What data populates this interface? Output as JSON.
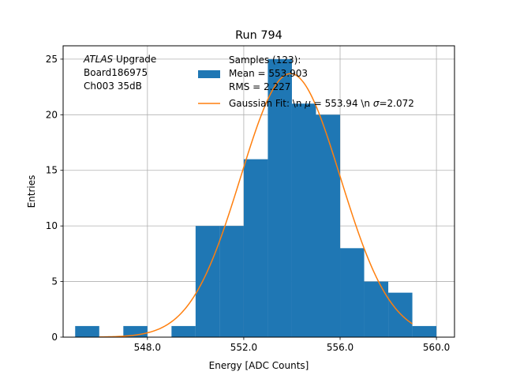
{
  "chart_data": {
    "type": "bar",
    "title": "Run 794",
    "xlabel": "Energy [ADC Counts]",
    "ylabel": "Entries",
    "xlim": [
      544.5,
      560.75
    ],
    "ylim": [
      0,
      26.2
    ],
    "xticks": [
      {
        "value": 548,
        "label": "548.0"
      },
      {
        "value": 552,
        "label": "552.0"
      },
      {
        "value": 556,
        "label": "556.0"
      },
      {
        "value": 560,
        "label": "560.0"
      }
    ],
    "yticks": [
      {
        "value": 0,
        "label": "0"
      },
      {
        "value": 5,
        "label": "5"
      },
      {
        "value": 10,
        "label": "10"
      },
      {
        "value": 15,
        "label": "15"
      },
      {
        "value": 20,
        "label": "20"
      },
      {
        "value": 25,
        "label": "25"
      }
    ],
    "grid": true,
    "legend_position": "top-right",
    "histogram": {
      "name": "Samples (123):\n Mean = 553.903\n RMS = 2.227",
      "color": "#1f77b4",
      "bin_edges": [
        545,
        546,
        547,
        548,
        549,
        550,
        551,
        552,
        553,
        554,
        555,
        556,
        557,
        558,
        559,
        560
      ],
      "counts": [
        1,
        0,
        1,
        0,
        1,
        10,
        10,
        16,
        25,
        21,
        20,
        8,
        5,
        4,
        1
      ]
    },
    "fit": {
      "name": "Gaussian Fit: \\n $\\mu$ = 553.94 \\n $\\sigma$=2.072",
      "color": "#ff7f0e",
      "mu": 553.94,
      "sigma": 2.072,
      "amplitude": 23.7,
      "x_range": [
        546,
        559
      ]
    },
    "annotation": {
      "lines": [
        "ATLAS Upgrade",
        "Board186975",
        "Ch003 35dB"
      ]
    }
  }
}
